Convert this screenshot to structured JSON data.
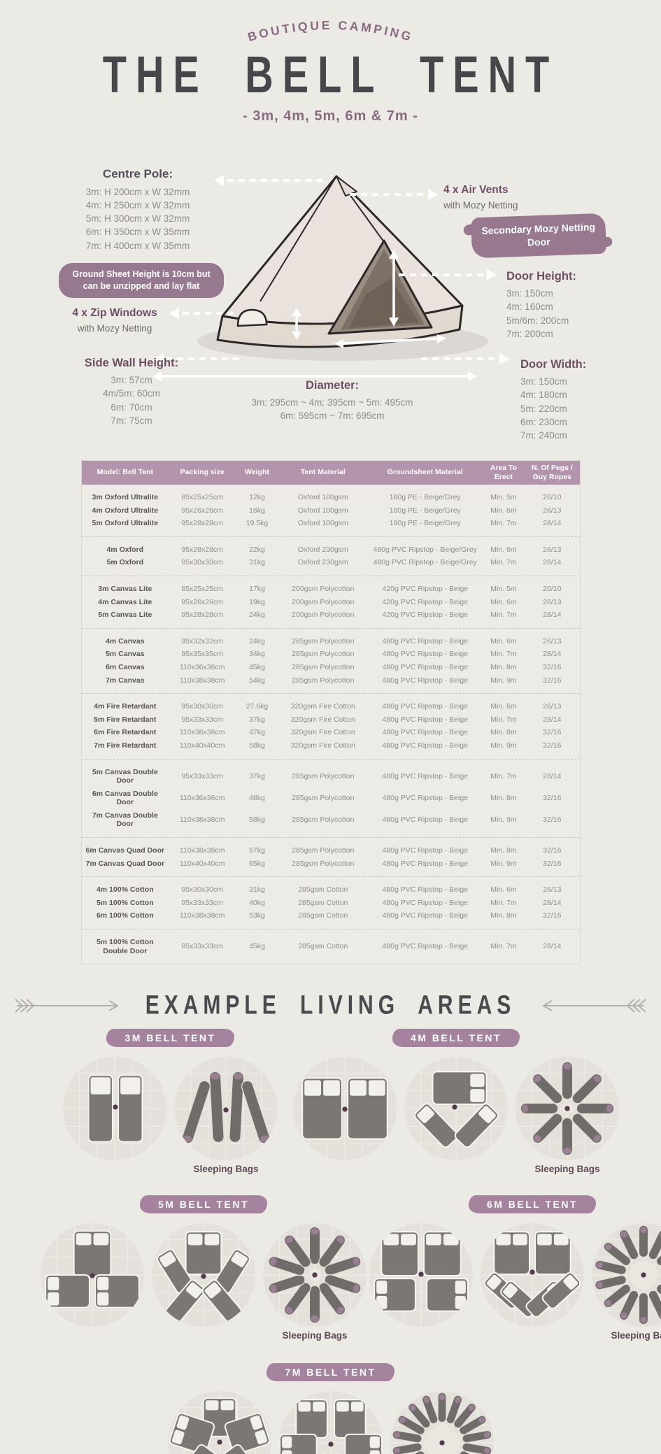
{
  "colors": {
    "background": "#ECEAE4",
    "accent_purple": "#A5839F",
    "brush_purple": "#97788F",
    "heading_purple": "#6E4F65",
    "brand_purple": "#8A6982",
    "table_header": "#B493AC",
    "title_dark": "#48464B",
    "text_grey": "#8F8B88",
    "bed_grey": "#7B7774",
    "bag_grey": "#6F6C69",
    "bag_tip": "#9B7F94",
    "pole_dot": "#553A4E",
    "circle_bg": "#E4E1DA"
  },
  "header": {
    "brand": "BOUTIQUE CAMPING",
    "title": "THE BELL TENT",
    "subtitle": "- 3m, 4m, 5m, 6m & 7m -"
  },
  "diagram": {
    "centre_pole": {
      "label": "Centre Pole:",
      "lines": [
        "3m: H 200cm x W 32mm",
        "4m: H 250cm x W 32mm",
        "5m: H 300cm x W 32mm",
        "6m: H 350cm x W 35mm",
        "7m: H 400cm x W 35mm"
      ]
    },
    "air_vents": {
      "label": "4 x Air Vents",
      "sub": "with Mozy Netting"
    },
    "secondary_door": {
      "label": "Secondary Mozy Netting Door"
    },
    "ground_sheet": {
      "label": "Ground Sheet Height is 10cm but can be unzipped and lay flat"
    },
    "zip_windows": {
      "label": "4 x Zip Windows",
      "sub": "with Mozy Netting"
    },
    "door_height": {
      "label": "Door Height:",
      "lines": [
        "3m: 150cm",
        "4m: 160cm",
        "5m/6m: 200cm",
        "7m: 200cm"
      ]
    },
    "side_wall": {
      "label": "Side Wall Height:",
      "lines": [
        "3m: 57cm",
        "4m/5m: 60cm",
        "6m: 70cm",
        "7m: 75cm"
      ]
    },
    "door_width": {
      "label": "Door Width:",
      "lines": [
        "3m: 150cm",
        "4m: 180cm",
        "5m: 220cm",
        "6m: 230cm",
        "7m: 240cm"
      ]
    },
    "diameter": {
      "label": "Diameter:",
      "lines": [
        "3m: 295cm ~ 4m: 395cm ~ 5m: 495cm",
        "6m: 595cm ~ 7m: 695cm"
      ]
    }
  },
  "table": {
    "columns": [
      "Model: Bell Tent",
      "Packing size",
      "Weight",
      "Tent Material",
      "Groundsheet Material",
      "Area To Erect",
      "N. Of Pegs / Guy Ropes"
    ],
    "groups": [
      [
        [
          "3m Oxford Ultralite",
          "85x25x25cm",
          "12kg",
          "Oxford 100gsm",
          "180g PE - Beige/Grey",
          "Min. 5m",
          "20/10"
        ],
        [
          "4m Oxford Ultralite",
          "95x26x26cm",
          "16kg",
          "Oxford 100gsm",
          "180g PE - Beige/Grey",
          "Min. 6m",
          "26/13"
        ],
        [
          "5m Oxford Ultralite",
          "95x28x28cm",
          "19.5kg",
          "Oxford 100gsm",
          "180g PE - Beige/Grey",
          "Min. 7m",
          "28/14"
        ]
      ],
      [
        [
          "4m Oxford",
          "95x28x28cm",
          "22kg",
          "Oxford 230gsm",
          "480g PVC Ripstop - Beige/Grey",
          "Min. 6m",
          "26/13"
        ],
        [
          "5m Oxford",
          "95x30x30cm",
          "31kg",
          "Oxford 230gsm",
          "480g PVC Ripstop - Beige/Grey",
          "Min. 7m",
          "28/14"
        ]
      ],
      [
        [
          "3m Canvas Lite",
          "85x25x25cm",
          "17kg",
          "200gsm Polycotton",
          "420g PVC Ripstop - Beige",
          "Min. 5m",
          "20/10"
        ],
        [
          "4m Canvas Lite",
          "95x26x26cm",
          "19kg",
          "200gsm Polycotton",
          "420g PVC Ripstop - Beige",
          "Min. 6m",
          "26/13"
        ],
        [
          "5m Canvas Lite",
          "95x28x28cm",
          "24kg",
          "200gsm Polycotton",
          "420g PVC Ripstop - Beige",
          "Min. 7m",
          "28/14"
        ]
      ],
      [
        [
          "4m Canvas",
          "95x32x32cm",
          "24kg",
          "285gsm Polycotton",
          "480g PVC Ripstop - Beige",
          "Min. 6m",
          "26/13"
        ],
        [
          "5m Canvas",
          "95x35x35cm",
          "34kg",
          "285gsm Polycotton",
          "480g PVC Ripstop - Beige",
          "Min. 7m",
          "28/14"
        ],
        [
          "6m Canvas",
          "110x36x36cm",
          "45kg",
          "285gsm Polycotton",
          "480g PVC Ripstop - Beige",
          "Min. 8m",
          "32/16"
        ],
        [
          "7m Canvas",
          "110x38x38cm",
          "54kg",
          "285gsm Polycotton",
          "480g PVC Ripstop - Beige",
          "Min. 9m",
          "32/16"
        ]
      ],
      [
        [
          "4m Fire Retardant",
          "95x30x30cm",
          "27.6kg",
          "320gsm Fire Cotton",
          "480g PVC Ripstop - Beige",
          "Min. 6m",
          "26/13"
        ],
        [
          "5m Fire Retardant",
          "95x33x33cm",
          "37kg",
          "320gsm Fire Cotton",
          "480g PVC Ripstop - Beige",
          "Min. 7m",
          "28/14"
        ],
        [
          "6m Fire Retardant",
          "110x38x38cm",
          "47kg",
          "320gsm Fire Cotton",
          "480g PVC Ripstop - Beige",
          "Min. 8m",
          "32/16"
        ],
        [
          "7m Fire Retardant",
          "110x40x40cm",
          "58kg",
          "320gsm Fire Cotton",
          "480g PVC Ripstop - Beige",
          "Min. 9m",
          "32/16"
        ]
      ],
      [
        [
          "5m Canvas Double Door",
          "95x33x33cm",
          "37kg",
          "285gsm Polycotton",
          "480g PVC Ripstop - Beige",
          "Min. 7m",
          "28/14"
        ],
        [
          "6m Canvas Double Door",
          "110x36x36cm",
          "48kg",
          "285gsm Polycotton",
          "480g PVC Ripstop - Beige",
          "Min. 8m",
          "32/16"
        ],
        [
          "7m Canvas Double Door",
          "110x38x38cm",
          "58kg",
          "285gsm Polycotton",
          "480g PVC Ripstop - Beige",
          "Min. 9m",
          "32/16"
        ]
      ],
      [
        [
          "6m Canvas Quad Door",
          "110x38x38cm",
          "57kg",
          "285gsm Polycotton",
          "480g PVC Ripstop - Beige",
          "Min. 8m",
          "32/16"
        ],
        [
          "7m Canvas Quad Door",
          "110x40x40cm",
          "65kg",
          "285gsm Polycotton",
          "480g PVC Ripstop - Beige",
          "Min. 9m",
          "32/16"
        ]
      ],
      [
        [
          "4m 100% Cotton",
          "95x30x30cm",
          "31kg",
          "285gsm Cotton",
          "480g PVC Ripstop - Beige",
          "Min. 6m",
          "26/13"
        ],
        [
          "5m 100% Cotton",
          "95x33x33cm",
          "40kg",
          "285gsm Cotton",
          "480g PVC Ripstop - Beige",
          "Min. 7m",
          "28/14"
        ],
        [
          "6m 100% Cotton",
          "110x38x38cm",
          "53kg",
          "285gsm Cotton",
          "480g PVC Ripstop - Beige",
          "Min. 8m",
          "32/16"
        ]
      ],
      [
        [
          "5m 100% Cotton Double Door",
          "95x33x33cm",
          "45kg",
          "285gsm Cotton",
          "480g PVC Ripstop - Beige",
          "Min. 7m",
          "28/14"
        ]
      ]
    ]
  },
  "living": {
    "title": "EXAMPLE LIVING AREAS",
    "bags_label": "Sleeping Bags",
    "tents": [
      {
        "badge": "3M BELL TENT",
        "layouts": [
          "singles-2",
          "bags-fan-4"
        ],
        "bag_count": 4
      },
      {
        "badge": "4M BELL TENT",
        "layouts": [
          "doubles-2",
          "double1-singles2",
          "bags-8"
        ],
        "bag_count": 8
      },
      {
        "badge": "5M BELL TENT",
        "layouts": [
          "doubles-3",
          "double1-singles4",
          "bags-10"
        ],
        "bag_count": 10
      },
      {
        "badge": "6M BELL TENT",
        "layouts": [
          "doubles-4",
          "doubles2-singles4",
          "bags-14"
        ],
        "bag_count": 14
      },
      {
        "badge": "7M BELL TENT",
        "layouts": [
          "doubles-5",
          "doubles4-singles2",
          "bags-18"
        ],
        "bag_count": 18
      }
    ]
  }
}
